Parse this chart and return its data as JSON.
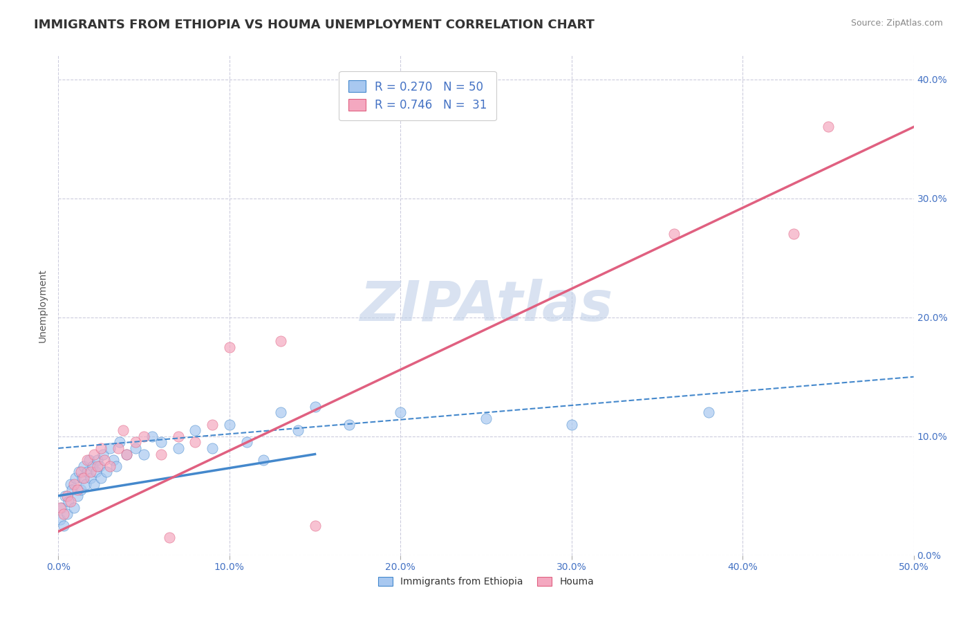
{
  "title": "IMMIGRANTS FROM ETHIOPIA VS HOUMA UNEMPLOYMENT CORRELATION CHART",
  "source": "Source: ZipAtlas.com",
  "ylabel": "Unemployment",
  "legend_label1": "Immigrants from Ethiopia",
  "legend_label2": "Houma",
  "R1": 0.27,
  "N1": 50,
  "R2": 0.746,
  "N2": 31,
  "color_blue": "#A8C8F0",
  "color_pink": "#F4A8C0",
  "color_blue_line": "#4488CC",
  "color_pink_line": "#E06080",
  "color_text_blue": "#4472C4",
  "background_color": "#FFFFFF",
  "grid_color": "#CCCCDD",
  "watermark": "ZIPAtlas",
  "watermark_color_zip": "#C0D0E8",
  "watermark_color_atlas": "#A0C0E0",
  "blue_scatter_x": [
    0.1,
    0.2,
    0.3,
    0.4,
    0.5,
    0.6,
    0.7,
    0.8,
    0.9,
    1.0,
    1.1,
    1.2,
    1.3,
    1.4,
    1.5,
    1.6,
    1.7,
    1.8,
    1.9,
    2.0,
    2.1,
    2.2,
    2.3,
    2.4,
    2.5,
    2.6,
    2.8,
    3.0,
    3.2,
    3.4,
    3.6,
    4.0,
    4.5,
    5.0,
    5.5,
    6.0,
    7.0,
    8.0,
    9.0,
    10.0,
    11.0,
    12.0,
    13.0,
    14.0,
    15.0,
    17.0,
    20.0,
    25.0,
    30.0,
    38.0
  ],
  "blue_scatter_y": [
    3.0,
    4.0,
    2.5,
    5.0,
    3.5,
    4.5,
    6.0,
    5.5,
    4.0,
    6.5,
    5.0,
    7.0,
    5.5,
    6.5,
    7.5,
    6.0,
    7.0,
    8.0,
    6.5,
    7.5,
    6.0,
    7.0,
    8.0,
    7.5,
    6.5,
    8.5,
    7.0,
    9.0,
    8.0,
    7.5,
    9.5,
    8.5,
    9.0,
    8.5,
    10.0,
    9.5,
    9.0,
    10.5,
    9.0,
    11.0,
    9.5,
    8.0,
    12.0,
    10.5,
    12.5,
    11.0,
    12.0,
    11.5,
    11.0,
    12.0
  ],
  "pink_scatter_x": [
    0.1,
    0.3,
    0.5,
    0.7,
    0.9,
    1.1,
    1.3,
    1.5,
    1.7,
    1.9,
    2.1,
    2.3,
    2.5,
    2.7,
    3.0,
    3.5,
    4.0,
    4.5,
    5.0,
    6.0,
    7.0,
    8.0,
    9.0,
    10.0,
    13.0,
    15.0,
    36.0,
    43.0,
    45.0,
    3.8,
    6.5
  ],
  "pink_scatter_y": [
    4.0,
    3.5,
    5.0,
    4.5,
    6.0,
    5.5,
    7.0,
    6.5,
    8.0,
    7.0,
    8.5,
    7.5,
    9.0,
    8.0,
    7.5,
    9.0,
    8.5,
    9.5,
    10.0,
    8.5,
    10.0,
    9.5,
    11.0,
    17.5,
    18.0,
    2.5,
    27.0,
    27.0,
    36.0,
    10.5,
    1.5
  ],
  "blue_line_x0": 0.0,
  "blue_line_y0": 5.0,
  "blue_line_x1": 15.0,
  "blue_line_y1": 8.5,
  "blue_dash_x0": 0.0,
  "blue_dash_y0": 9.0,
  "blue_dash_x1": 50.0,
  "blue_dash_y1": 15.0,
  "pink_line_x0": 0.0,
  "pink_line_y0": 2.0,
  "pink_line_x1": 50.0,
  "pink_line_y1": 36.0,
  "xlim": [
    0,
    50
  ],
  "ylim": [
    0,
    42
  ],
  "ytick_values": [
    0,
    10,
    20,
    30,
    40
  ],
  "xtick_values": [
    0,
    10,
    20,
    30,
    40,
    50
  ],
  "title_fontsize": 13,
  "axis_fontsize": 10,
  "legend_fontsize": 12
}
